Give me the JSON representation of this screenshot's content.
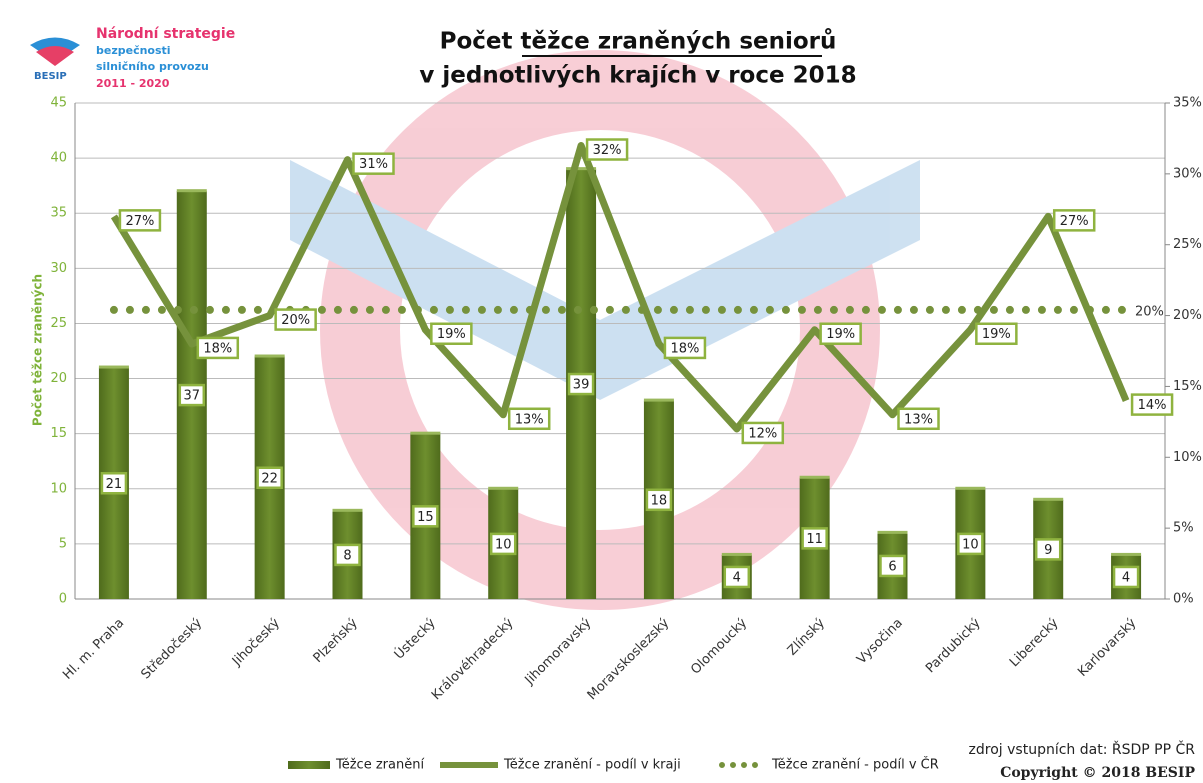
{
  "logo": {
    "name": "BESIP",
    "lines": [
      "Národní strategie",
      "bezpečnosti",
      "silničního provozu",
      "2011 - 2020"
    ]
  },
  "chart_data": {
    "type": "bar-line",
    "title": [
      "Počet těžce zraněných seniorů",
      "v jednotlivých krajích v roce 2018"
    ],
    "ylabel": "Počet těžce zraněných",
    "categories": [
      "Hl. m. Praha",
      "Středočeský",
      "Jihočeský",
      "Plzeňský",
      "Ústecký",
      "Královéhradecký",
      "Jihomoravský",
      "Moravskoslezský",
      "Olomoucký",
      "Zlínský",
      "Vysočina",
      "Pardubický",
      "Liberecký",
      "Karlovarský"
    ],
    "series": [
      {
        "name": "Těžce zranění",
        "color": "#6e8f2e",
        "values": [
          21,
          37,
          22,
          8,
          15,
          10,
          39,
          18,
          4,
          11,
          6,
          10,
          9,
          4
        ]
      },
      {
        "name": "Těžce zranění - podíl v kraji",
        "color": "#76923c",
        "axis": "y2",
        "values": [
          27,
          18,
          20,
          31,
          19,
          13,
          32,
          18,
          12,
          19,
          13,
          19,
          27,
          14
        ],
        "value_labels": [
          "27%",
          "18%",
          "20%",
          "31%",
          "19%",
          "13%",
          "32%",
          "18%",
          "12%",
          "19%",
          "13%",
          "19%",
          "27%",
          "14%"
        ]
      },
      {
        "name": "Těžce zranění - podíl v ČR",
        "color": "#76923c",
        "axis": "y2",
        "value": 20.4,
        "value_label": "20%"
      }
    ],
    "ylim": [
      0,
      45
    ],
    "yticks": [
      0,
      5,
      10,
      15,
      20,
      25,
      30,
      35,
      40,
      45
    ],
    "y2lim": [
      0,
      35
    ],
    "y2ticks": [
      {
        "value": 0,
        "label": "0%"
      },
      {
        "value": 5,
        "label": "5%"
      },
      {
        "value": 10,
        "label": "10%"
      },
      {
        "value": 15,
        "label": "15%"
      },
      {
        "value": 20,
        "label": "20%"
      },
      {
        "value": 25,
        "label": "25%"
      },
      {
        "value": 30,
        "label": "30%"
      },
      {
        "value": 35,
        "label": "35%"
      }
    ],
    "grid": true,
    "source": "zdroj vstupních dat: ŘSDP PP ČR",
    "copyright": "Copyright © 2018 BESIP"
  }
}
